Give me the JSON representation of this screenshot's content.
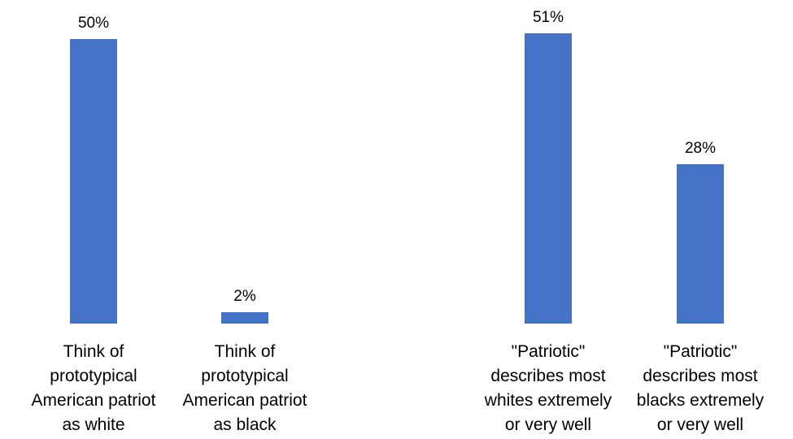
{
  "chart_data": [
    {
      "type": "bar",
      "categories": [
        "Think of prototypical American patriot as white",
        "Think of prototypical American patriot as black"
      ],
      "category_lines": [
        [
          "Think of",
          "prototypical",
          "American patriot",
          "as white"
        ],
        [
          "Think of",
          "prototypical",
          "American patriot",
          "as black"
        ]
      ],
      "values": [
        50,
        2
      ],
      "data_labels": [
        "50%",
        "2%"
      ],
      "ylim": [
        0,
        52
      ],
      "bar_color": "#4472C4",
      "grid": false,
      "legend": "none"
    },
    {
      "type": "bar",
      "categories": [
        "\"Patriotic\" describes most whites extremely or very well",
        "\"Patriotic\" describes most blacks extremely or very well"
      ],
      "category_lines": [
        [
          "\"Patriotic\"",
          "describes most",
          "whites extremely",
          "or very well"
        ],
        [
          "\"Patriotic\"",
          "describes most",
          "blacks extremely",
          "or very well"
        ]
      ],
      "values": [
        51,
        28
      ],
      "data_labels": [
        "51%",
        "28%"
      ],
      "ylim": [
        0,
        52
      ],
      "bar_color": "#4472C4",
      "grid": false,
      "legend": "none"
    }
  ]
}
